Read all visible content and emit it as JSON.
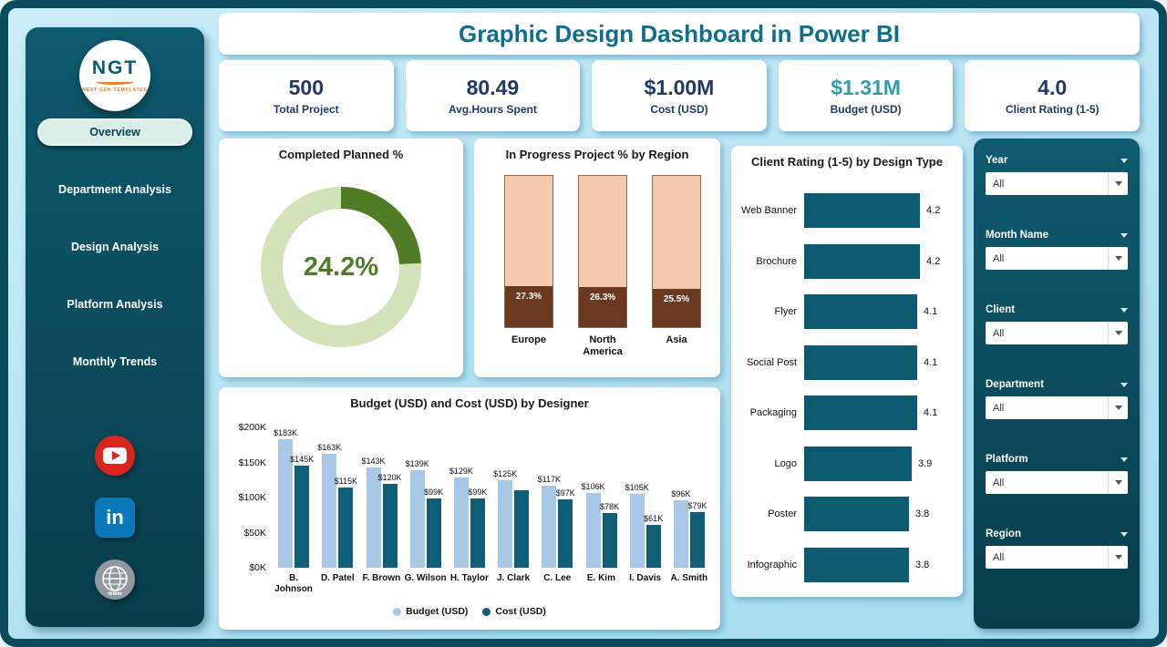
{
  "header": {
    "title": "Graphic Design Dashboard in Power BI"
  },
  "sidebar": {
    "logo": {
      "text": "NGT",
      "subtext": "NEXT GEN TEMPLATES"
    },
    "nav": [
      {
        "label": "Overview",
        "active": true
      },
      {
        "label": "Department Analysis",
        "active": false
      },
      {
        "label": "Design Analysis",
        "active": false
      },
      {
        "label": "Platform Analysis",
        "active": false
      },
      {
        "label": "Monthly Trends",
        "active": false
      }
    ],
    "social": [
      {
        "name": "youtube",
        "color": "#da251c"
      },
      {
        "name": "linkedin",
        "color": "#0b79b8"
      },
      {
        "name": "website",
        "color": "#9198a0"
      }
    ]
  },
  "kpis": [
    {
      "value": "500",
      "label": "Total Project",
      "value_color": "#1f3a64"
    },
    {
      "value": "80.49",
      "label": "Avg.Hours Spent",
      "value_color": "#1f3a64"
    },
    {
      "value": "$1.00M",
      "label": "Cost (USD)",
      "value_color": "#1f3a64"
    },
    {
      "value": "$1.31M",
      "label": "Budget (USD)",
      "value_color": "#2d9fb0"
    },
    {
      "value": "4.0",
      "label": "Client Rating (1-5)",
      "value_color": "#1f3a64"
    }
  ],
  "filters": [
    {
      "label": "Year",
      "value": "All"
    },
    {
      "label": "Month Name",
      "value": "All"
    },
    {
      "label": "Client",
      "value": "All"
    },
    {
      "label": "Department",
      "value": "All"
    },
    {
      "label": "Platform",
      "value": "All"
    },
    {
      "label": "Region",
      "value": "All"
    }
  ],
  "palette": {
    "frame": "#0a4b5c",
    "page_bg": "#b3e2f3",
    "panel_dark_top": "#0e5a6e",
    "panel_dark_bottom": "#083d4c",
    "title_text": "#0d6f8e",
    "kpi_navy": "#1f3a64",
    "kpi_teal_accent": "#2d9fb0"
  },
  "chart_data": [
    {
      "type": "pie",
      "subtype": "donut",
      "title": "Completed Planned %",
      "value_pct": 24.2,
      "center_label": "24.2%",
      "colors": {
        "filled": "#4f7c24",
        "rest": "#d2e3ba"
      }
    },
    {
      "type": "bar",
      "subtype": "stacked-100",
      "title": "In Progress Project % by Region",
      "categories": [
        "Europe",
        "North America",
        "Asia"
      ],
      "in_progress_pct": [
        27.3,
        26.3,
        25.5
      ],
      "labels": [
        "27.3%",
        "26.3%",
        "25.5%"
      ],
      "colors": {
        "top": "#f5c9ae",
        "bottom": "#693a1f"
      }
    },
    {
      "type": "bar",
      "subtype": "horizontal",
      "title": "Client Rating (1-5) by Design Type",
      "categories": [
        "Web Banner",
        "Brochure",
        "Flyer",
        "Social Post",
        "Packaging",
        "Logo",
        "Poster",
        "Infographic"
      ],
      "values": [
        4.2,
        4.2,
        4.1,
        4.1,
        4.1,
        3.9,
        3.8,
        3.8
      ],
      "xlim": [
        0,
        4.5
      ],
      "bar_color": "#0d5a73"
    },
    {
      "type": "bar",
      "subtype": "grouped",
      "title": "Budget (USD) and Cost (USD) by Designer",
      "categories": [
        "B. Johnson",
        "D. Patel",
        "F. Brown",
        "G. Wilson",
        "H. Taylor",
        "J. Clark",
        "C. Lee",
        "E. Kim",
        "I. Davis",
        "A. Smith"
      ],
      "series": [
        {
          "name": "Budget (USD)",
          "color": "#a9c7e6",
          "values": [
            183,
            163,
            143,
            139,
            129,
            125,
            117,
            106,
            105,
            96
          ],
          "labels": [
            "$183K",
            "$163K",
            "$143K",
            "$139K",
            "$129K",
            "$125K",
            "$117K",
            "$106K",
            "$105K",
            "$96K"
          ]
        },
        {
          "name": "Cost (USD)",
          "color": "#115e78",
          "values": [
            145,
            115,
            120,
            99,
            99,
            110,
            97,
            78,
            61,
            79
          ],
          "labels": [
            "$145K",
            "$115K",
            "$120K",
            "$99K",
            "$99K",
            "",
            "$97K",
            "$78K",
            "$61K",
            "$79K"
          ]
        }
      ],
      "ylabel_ticks": [
        "$200K",
        "$150K",
        "$100K",
        "$50K",
        "$0K"
      ],
      "ylim": [
        0,
        200
      ],
      "unit": "K USD"
    }
  ]
}
